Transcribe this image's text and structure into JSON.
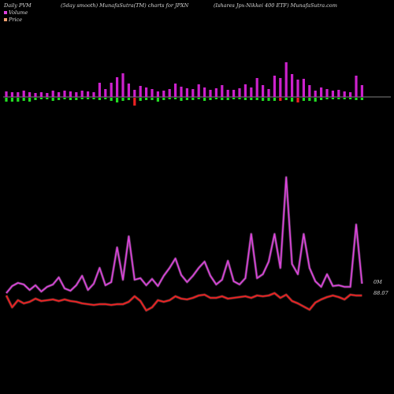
{
  "header": {
    "left": "Daily PVM",
    "center": "(5day smooth) MunafaSutra(TM) charts for JPXN",
    "right": "(Ishares Jpx-Nikkei  400  ETF) MunafaSutra.com"
  },
  "legend": [
    {
      "label": "Volume",
      "color": "#e040e0"
    },
    {
      "label": "Price",
      "color": "#f0a070"
    }
  ],
  "colors": {
    "up_bar": "#cc22cc",
    "down_green": "#22dd22",
    "down_red": "#ee2222",
    "volume_line": "#dd44dd",
    "price_line": "#ee2222"
  },
  "chart_data": {
    "type": "bar+line",
    "bars": {
      "top": [
        7,
        6,
        6,
        8,
        6,
        5,
        6,
        5,
        8,
        6,
        8,
        7,
        6,
        8,
        7,
        6,
        18,
        10,
        18,
        25,
        30,
        17,
        9,
        14,
        12,
        10,
        7,
        8,
        10,
        17,
        13,
        11,
        10,
        16,
        12,
        9,
        11,
        15,
        9,
        9,
        11,
        16,
        12,
        24,
        15,
        10,
        27,
        24,
        44,
        29,
        22,
        23,
        15,
        8,
        12,
        10,
        8,
        9,
        7,
        6,
        27,
        15
      ],
      "bottom": [
        5,
        5,
        5,
        4,
        5,
        3,
        2,
        2,
        4,
        3,
        2,
        3,
        3,
        2,
        2,
        2,
        3,
        2,
        4,
        6,
        4,
        3,
        10,
        4,
        3,
        3,
        5,
        3,
        2,
        2,
        4,
        3,
        3,
        2,
        4,
        3,
        2,
        3,
        3,
        2,
        2,
        3,
        3,
        3,
        4,
        4,
        4,
        4,
        3,
        5,
        6,
        4,
        4,
        5,
        3,
        2,
        2,
        2,
        2,
        2,
        3,
        3
      ],
      "bottom_color": [
        "g",
        "g",
        "g",
        "g",
        "g",
        "g",
        "g",
        "g",
        "g",
        "g",
        "g",
        "g",
        "g",
        "g",
        "g",
        "g",
        "g",
        "g",
        "g",
        "g",
        "g",
        "g",
        "r",
        "g",
        "g",
        "g",
        "g",
        "g",
        "g",
        "g",
        "g",
        "g",
        "g",
        "g",
        "g",
        "g",
        "g",
        "g",
        "g",
        "g",
        "g",
        "g",
        "g",
        "g",
        "g",
        "g",
        "g",
        "r",
        "g",
        "g",
        "r",
        "g",
        "g",
        "g",
        "g",
        "g",
        "g",
        "g",
        "g",
        "g",
        "g",
        "g"
      ]
    },
    "volume": [
      372,
      363,
      359,
      361,
      368,
      362,
      370,
      364,
      361,
      352,
      366,
      369,
      362,
      350,
      368,
      360,
      340,
      362,
      358,
      314,
      355,
      300,
      355,
      353,
      362,
      354,
      363,
      350,
      340,
      328,
      349,
      358,
      350,
      340,
      332,
      350,
      361,
      355,
      331,
      357,
      361,
      353,
      297,
      353,
      348,
      332,
      297,
      340,
      225,
      335,
      348,
      297,
      340,
      357,
      364,
      348,
      363,
      362,
      364,
      364,
      285,
      360
    ],
    "price": [
      375,
      390,
      381,
      385,
      383,
      379,
      382,
      381,
      380,
      382,
      380,
      382,
      383,
      385,
      386,
      387,
      386,
      386,
      387,
      386,
      386,
      383,
      376,
      382,
      394,
      390,
      381,
      383,
      381,
      376,
      379,
      380,
      378,
      375,
      374,
      378,
      378,
      376,
      379,
      378,
      377,
      376,
      378,
      375,
      376,
      375,
      372,
      378,
      374,
      382,
      385,
      389,
      393,
      384,
      380,
      377,
      375,
      377,
      380,
      374,
      375,
      375
    ],
    "last_volume_label": "0M",
    "last_price_label": "88.07"
  }
}
